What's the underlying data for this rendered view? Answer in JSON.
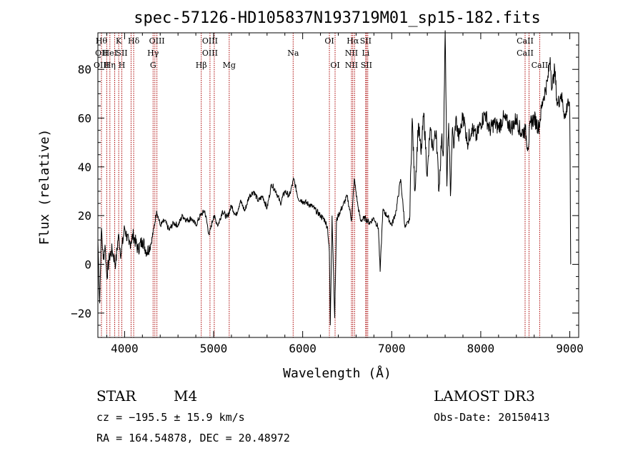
{
  "chart_data": {
    "type": "line",
    "title": "spec-57126-HD105837N193719M01_sp15-182.fits",
    "xlabel": "Wavelength (Å)",
    "ylabel": "Flux (relative)",
    "xlim": [
      3700,
      9100
    ],
    "ylim": [
      -30,
      95
    ],
    "xticks": [
      4000,
      5000,
      6000,
      7000,
      8000,
      9000
    ],
    "yticks": [
      -20,
      0,
      20,
      40,
      60,
      80
    ],
    "ytick_labels": [
      "−20",
      "0",
      "20",
      "40",
      "60",
      "80"
    ],
    "grid": false,
    "line_color": "#000000",
    "marker_color": "#aa0000",
    "spectrum": {
      "x": [
        3700,
        3720,
        3740,
        3760,
        3780,
        3800,
        3830,
        3860,
        3900,
        3930,
        3960,
        4000,
        4050,
        4100,
        4150,
        4200,
        4250,
        4300,
        4330,
        4360,
        4400,
        4450,
        4500,
        4550,
        4600,
        4650,
        4700,
        4750,
        4800,
        4850,
        4900,
        4950,
        5000,
        5050,
        5100,
        5150,
        5200,
        5250,
        5300,
        5350,
        5400,
        5450,
        5500,
        5550,
        5600,
        5650,
        5700,
        5750,
        5800,
        5850,
        5900,
        5950,
        6000,
        6050,
        6100,
        6150,
        6200,
        6250,
        6280,
        6300,
        6310,
        6330,
        6360,
        6380,
        6400,
        6450,
        6500,
        6550,
        6580,
        6620,
        6650,
        6700,
        6750,
        6800,
        6850,
        6870,
        6900,
        6950,
        7000,
        7050,
        7100,
        7150,
        7200,
        7230,
        7260,
        7300,
        7330,
        7360,
        7400,
        7430,
        7460,
        7500,
        7530,
        7560,
        7580,
        7600,
        7620,
        7640,
        7660,
        7680,
        7700,
        7720,
        7750,
        7780,
        7800,
        7850,
        7900,
        7950,
        8000,
        8050,
        8100,
        8150,
        8200,
        8250,
        8300,
        8350,
        8400,
        8450,
        8500,
        8530,
        8560,
        8600,
        8650,
        8700,
        8750,
        8780,
        8800,
        8830,
        8860,
        8900,
        8950,
        8980,
        9000,
        9010
      ],
      "y": [
        10,
        -16,
        15,
        2,
        8,
        -5,
        3,
        6,
        0,
        12,
        4,
        15,
        8,
        12,
        6,
        10,
        5,
        9,
        15,
        22,
        16,
        18,
        14,
        17,
        16,
        20,
        18,
        19,
        16,
        20,
        22,
        12,
        20,
        16,
        22,
        19,
        24,
        20,
        26,
        22,
        28,
        30,
        26,
        28,
        23,
        33,
        30,
        25,
        30,
        28,
        35,
        27,
        26,
        25,
        24,
        22,
        20,
        18,
        15,
        5,
        -25,
        20,
        -22,
        18,
        20,
        24,
        28,
        18,
        35,
        24,
        18,
        19,
        17,
        19,
        15,
        -3,
        22,
        20,
        16,
        22,
        35,
        15,
        18,
        60,
        30,
        58,
        45,
        62,
        36,
        55,
        48,
        55,
        30,
        52,
        45,
        96,
        32,
        58,
        28,
        55,
        48,
        60,
        52,
        56,
        62,
        50,
        56,
        52,
        58,
        62,
        55,
        58,
        56,
        60,
        58,
        56,
        60,
        54,
        55,
        48,
        58,
        60,
        56,
        68,
        75,
        85,
        72,
        80,
        65,
        70,
        60,
        68,
        62,
        0
      ],
      "noise_seed": 7
    },
    "lines": [
      {
        "x": 3740,
        "labels": [
          "Hθ",
          "OII",
          "OIII"
        ]
      },
      {
        "x": 3800,
        "labels": [
          "",
          "",
          ""
        ]
      },
      {
        "x": 3835,
        "labels": [
          "",
          "HeI",
          "Hη"
        ]
      },
      {
        "x": 3889,
        "labels": [
          "",
          "",
          ""
        ]
      },
      {
        "x": 3934,
        "labels": [
          "K",
          "",
          ""
        ]
      },
      {
        "x": 3969,
        "labels": [
          "",
          "SII",
          "H"
        ]
      },
      {
        "x": 4073,
        "labels": [
          "",
          "",
          ""
        ]
      },
      {
        "x": 4102,
        "labels": [
          "Hδ",
          "",
          ""
        ]
      },
      {
        "x": 4320,
        "labels": [
          "",
          "Hγ",
          "G"
        ]
      },
      {
        "x": 4340,
        "labels": [
          "",
          "",
          ""
        ]
      },
      {
        "x": 4363,
        "labels": [
          "OIII",
          "",
          ""
        ]
      },
      {
        "x": 4861,
        "labels": [
          "",
          "",
          "Hβ"
        ]
      },
      {
        "x": 4959,
        "labels": [
          "OIII",
          "OIII",
          ""
        ]
      },
      {
        "x": 5007,
        "labels": [
          "",
          "",
          ""
        ]
      },
      {
        "x": 5175,
        "labels": [
          "",
          "",
          "Mg"
        ]
      },
      {
        "x": 5893,
        "labels": [
          "",
          "Na",
          ""
        ]
      },
      {
        "x": 6300,
        "labels": [
          "OI",
          "",
          ""
        ]
      },
      {
        "x": 6364,
        "labels": [
          "",
          "",
          "OI"
        ]
      },
      {
        "x": 6548,
        "labels": [
          "",
          "NII",
          "NII"
        ]
      },
      {
        "x": 6563,
        "labels": [
          "Hα",
          "",
          ""
        ]
      },
      {
        "x": 6583,
        "labels": [
          "",
          "",
          ""
        ]
      },
      {
        "x": 6708,
        "labels": [
          "SII",
          "Li",
          ""
        ]
      },
      {
        "x": 6716,
        "labels": [
          "",
          "",
          "SII"
        ]
      },
      {
        "x": 6731,
        "labels": [
          "",
          "",
          ""
        ]
      },
      {
        "x": 8498,
        "labels": [
          "CaII",
          "CaII",
          ""
        ]
      },
      {
        "x": 8542,
        "labels": [
          "",
          "",
          ""
        ]
      },
      {
        "x": 8662,
        "labels": [
          "",
          "",
          "CaII"
        ]
      }
    ]
  },
  "info": {
    "class_label": "STAR",
    "subclass": "M4",
    "cz": "cz = −195.5 ± 15.9 km/s",
    "radec": "RA = 164.54878, DEC =  20.48972",
    "survey": "LAMOST DR3",
    "obs_date": "Obs-Date: 20150413"
  }
}
